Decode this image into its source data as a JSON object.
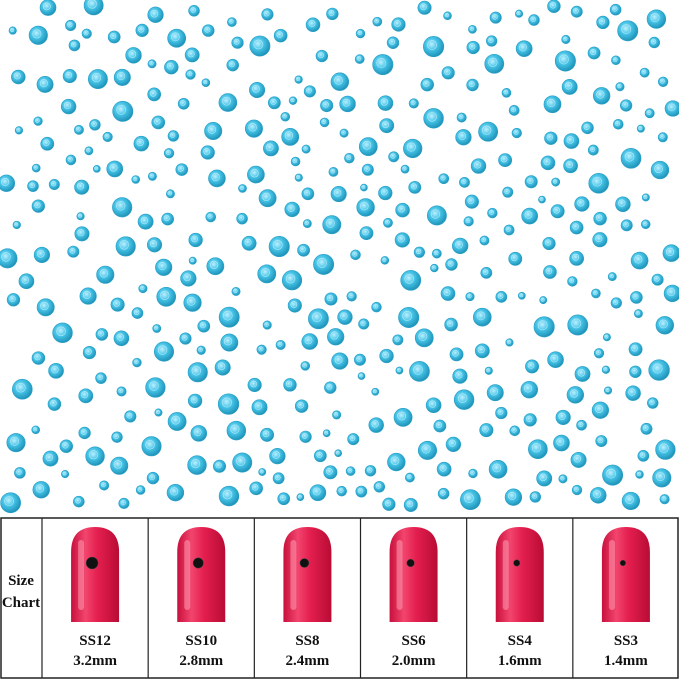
{
  "size_chart": {
    "label_lines": [
      "Size",
      "Chart"
    ],
    "items": [
      {
        "size": "SS12",
        "mm": "3.2mm"
      },
      {
        "size": "SS10",
        "mm": "2.8mm"
      },
      {
        "size": "SS8",
        "mm": "2.4mm"
      },
      {
        "size": "SS6",
        "mm": "2.0mm"
      },
      {
        "size": "SS4",
        "mm": "1.6mm"
      },
      {
        "size": "SS3",
        "mm": "1.4mm"
      }
    ]
  }
}
